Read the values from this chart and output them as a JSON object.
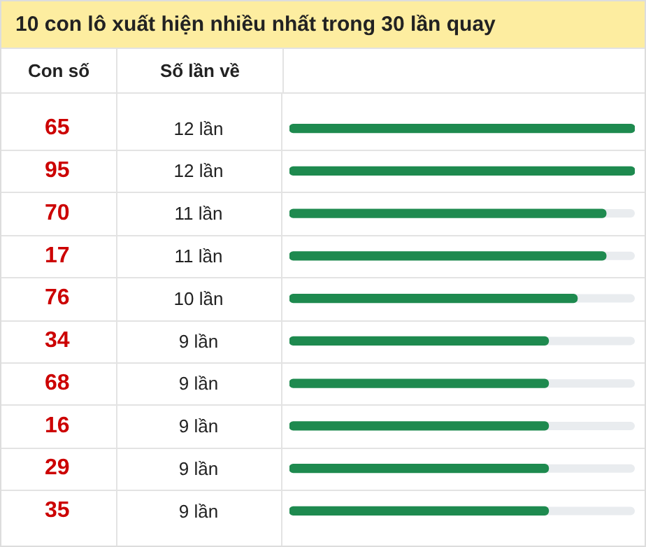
{
  "chart_data": {
    "type": "bar",
    "orientation": "horizontal",
    "title": "10 con lô xuất hiện nhiều nhất trong 30 lần quay",
    "annotations": [
      "Con số",
      "Số lần về"
    ],
    "categories": [
      "65",
      "95",
      "70",
      "17",
      "76",
      "34",
      "68",
      "16",
      "29",
      "35"
    ],
    "values": [
      12,
      12,
      11,
      11,
      10,
      9,
      9,
      9,
      9,
      9
    ],
    "value_labels": [
      "12 lần",
      "12 lần",
      "11 lần",
      "11 lần",
      "10 lần",
      "9 lần",
      "9 lần",
      "9 lần",
      "9 lần",
      "9 lần"
    ],
    "color": "#1e8a4f",
    "xlim": [
      0,
      12
    ]
  }
}
